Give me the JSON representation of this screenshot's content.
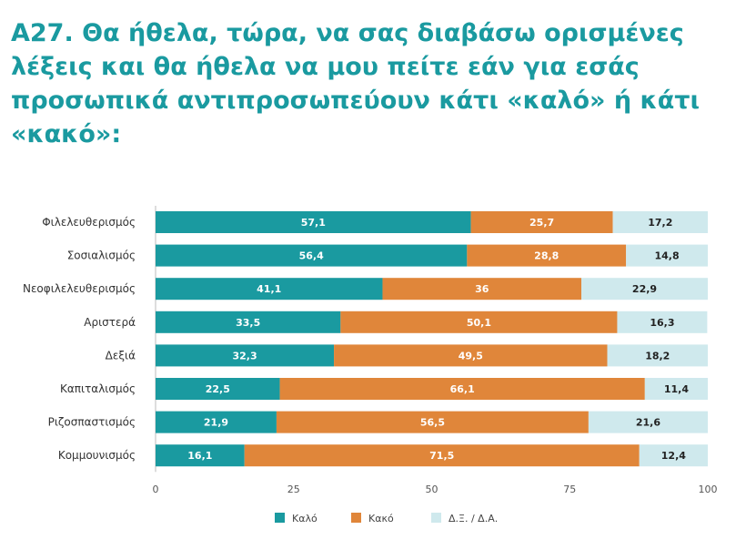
{
  "title": "Α27. Θα ήθελα, τώρα, να σας διαβάσω ορισμένες λέξεις και θα ήθελα να μου πείτε εάν για εσάς προσωπικά αντιπροσωπεύουν κάτι «καλό» ή κάτι «κακό»:",
  "chart_data": {
    "type": "bar",
    "orientation": "horizontal",
    "stacked": true,
    "title": "Α27. Θα ήθελα, τώρα, να σας διαβάσω ορισμένες λέξεις και θα ήθελα να μου πείτε εάν για εσάς προσωπικά αντιπροσωπεύουν κάτι «καλό» ή κάτι «κακό»:",
    "categories": [
      "Φιλελευθερισμός",
      "Σοσιαλισμός",
      "Νεοφιλελευθερισμός",
      "Αριστερά",
      "Δεξιά",
      "Καπιταλισμός",
      "Ριζοσπαστισμός",
      "Κομμουνισμός"
    ],
    "series": [
      {
        "name": "Καλό",
        "color": "#1a9aa0",
        "values": [
          57.1,
          56.4,
          41.1,
          33.5,
          32.3,
          22.5,
          21.9,
          16.1
        ],
        "labels": [
          "57,1",
          "56,4",
          "41,1",
          "33,5",
          "32,3",
          "22,5",
          "21,9",
          "16,1"
        ]
      },
      {
        "name": "Κακό",
        "color": "#e0863a",
        "values": [
          25.7,
          28.8,
          36,
          50.1,
          49.5,
          66.1,
          56.5,
          71.5
        ],
        "labels": [
          "25,7",
          "28,8",
          "36",
          "50,1",
          "49,5",
          "66,1",
          "56,5",
          "71,5"
        ]
      },
      {
        "name": "Δ.Ξ. / Δ.Α.",
        "color": "#cfe9ed",
        "values": [
          17.2,
          14.8,
          22.9,
          16.3,
          18.2,
          11.4,
          21.6,
          12.4
        ],
        "labels": [
          "17,2",
          "14,8",
          "22,9",
          "16,3",
          "18,2",
          "11,4",
          "21,6",
          "12,4"
        ]
      }
    ],
    "xlim": [
      0,
      100
    ],
    "xticks": [
      "0",
      "25",
      "50",
      "75",
      "100"
    ],
    "grid": false,
    "legend": "bottom"
  }
}
